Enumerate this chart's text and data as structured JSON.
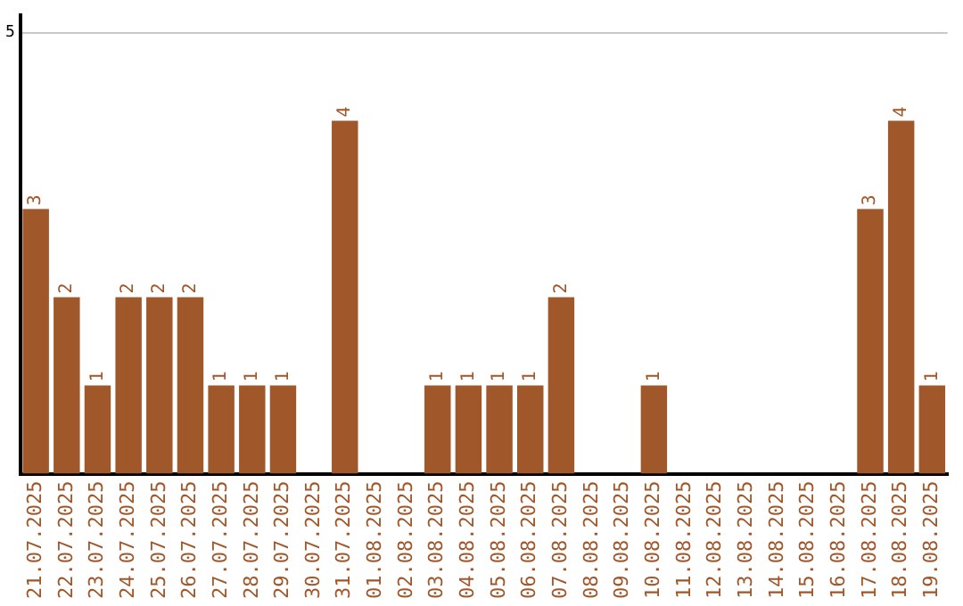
{
  "chart_data": {
    "type": "bar",
    "categories": [
      "21.07.2025",
      "22.07.2025",
      "23.07.2025",
      "24.07.2025",
      "25.07.2025",
      "26.07.2025",
      "27.07.2025",
      "28.07.2025",
      "29.07.2025",
      "30.07.2025",
      "31.07.2025",
      "01.08.2025",
      "02.08.2025",
      "03.08.2025",
      "04.08.2025",
      "05.08.2025",
      "06.08.2025",
      "07.08.2025",
      "08.08.2025",
      "09.08.2025",
      "10.08.2025",
      "11.08.2025",
      "12.08.2025",
      "13.08.2025",
      "14.08.2025",
      "15.08.2025",
      "16.08.2025",
      "17.08.2025",
      "18.08.2025",
      "19.08.2025"
    ],
    "values": [
      3,
      2,
      1,
      2,
      2,
      2,
      1,
      1,
      1,
      0,
      4,
      0,
      0,
      1,
      1,
      1,
      1,
      2,
      0,
      0,
      1,
      0,
      0,
      0,
      0,
      0,
      0,
      3,
      4,
      1
    ],
    "value_labels": [
      "3",
      "2",
      "1",
      "2",
      "2",
      "2",
      "1",
      "1",
      "1",
      null,
      "4",
      null,
      null,
      "1",
      "1",
      "1",
      "1",
      "2",
      null,
      null,
      "1",
      null,
      null,
      null,
      null,
      null,
      null,
      "3",
      "4",
      "1"
    ],
    "color": "#a0572a",
    "ylim": [
      0,
      5.2
    ],
    "yticks": [
      5
    ],
    "grid": "y",
    "legend": false
  }
}
